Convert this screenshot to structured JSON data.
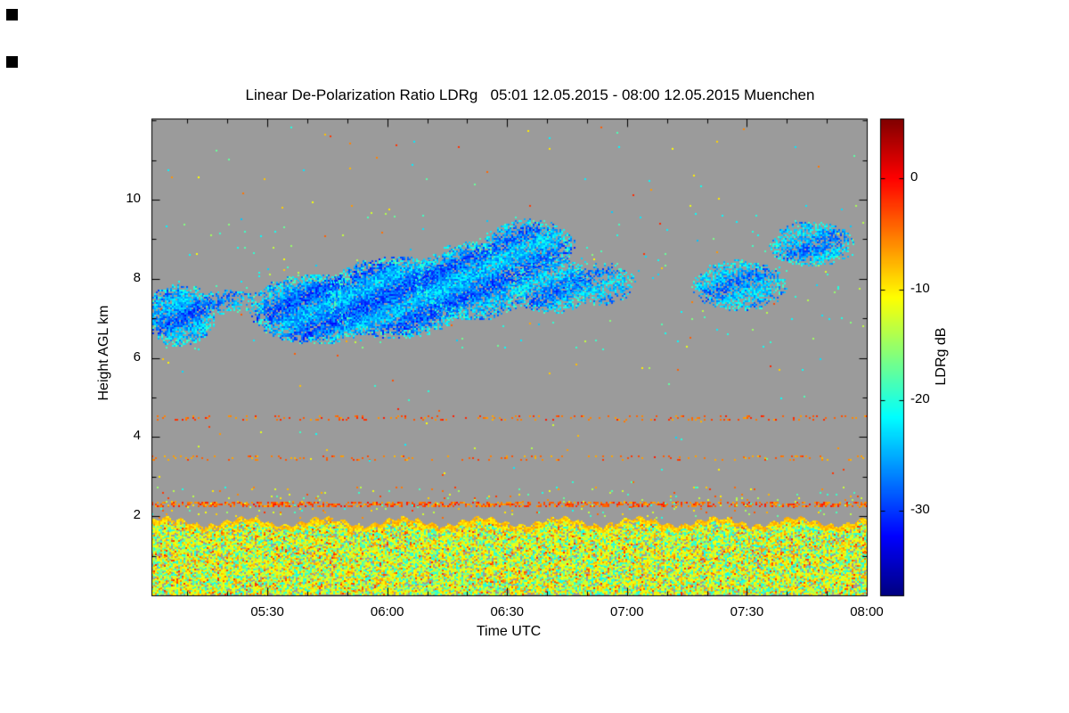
{
  "chart_data": {
    "type": "heatmap",
    "title": "Linear De-Polarization Ratio LDRg   05:01 12.05.2015 - 08:00 12.05.2015 Muenchen",
    "quantity": "Linear De-Polarization Ratio LDRg",
    "time_start": "05:01 12.05.2015",
    "time_end": "08:00 12.05.2015",
    "station": "Muenchen",
    "xlabel": "Time UTC",
    "ylabel": "Height AGL km",
    "colorbar_label": "LDRg dB",
    "x_ticks": [
      "05:30",
      "06:00",
      "06:30",
      "07:00",
      "07:30",
      "08:00"
    ],
    "x_tick_minutes": [
      30,
      60,
      90,
      120,
      150,
      180
    ],
    "x_minor_step_minutes": 10,
    "x_range_minutes": [
      1,
      180
    ],
    "y_ticks": [
      2,
      4,
      6,
      8,
      10
    ],
    "y_minor_step_km": 1,
    "y_range_km": [
      0,
      12.05
    ],
    "colorbar_ticks": [
      0,
      -10,
      -20,
      -30
    ],
    "colorbar_range_db": [
      -37.6,
      5.4
    ],
    "grid": false,
    "legend": null,
    "plot_background_color": "#9b9b9b",
    "page_background_color": "#ffffff",
    "axis_color": "#000000",
    "colormap_stops": [
      {
        "t": 0.0,
        "c": "#000080"
      },
      {
        "t": 0.125,
        "c": "#0000ff"
      },
      {
        "t": 0.375,
        "c": "#00ffff"
      },
      {
        "t": 0.625,
        "c": "#ffff00"
      },
      {
        "t": 0.875,
        "c": "#ff0000"
      },
      {
        "t": 1.0,
        "c": "#800000"
      }
    ],
    "regions": [
      {
        "kind": "noise_layer",
        "name": "boundary-layer",
        "t0": 1,
        "t1": 180,
        "h0": 0.03,
        "h_top": 1.86,
        "wave_amp": 0.1,
        "wave_freq": 0.32,
        "density": 0.9,
        "palette": [
          {
            "v": -11,
            "j": 1.8,
            "w": 0.36
          },
          {
            "v": -14,
            "j": 1.6,
            "w": 0.18
          },
          {
            "v": -19,
            "j": 2.2,
            "w": 0.27
          },
          {
            "v": -7.5,
            "j": 1.6,
            "w": 0.13
          },
          {
            "v": -3.5,
            "j": 2.0,
            "w": 0.06
          }
        ],
        "cap_thickness": 0.1,
        "cap_v": -8.5,
        "cap_j": 2.0,
        "cap_density": 0.92
      },
      {
        "kind": "speckle_line",
        "name": "artifact-line-2300m",
        "h": 2.3,
        "thickness": 0.11,
        "t0": 1,
        "t1": 180,
        "density": 0.5,
        "v": -4,
        "j": 3.5
      },
      {
        "kind": "sparse_dots",
        "name": "scatter-above-boundary-layer",
        "t0": 1,
        "t1": 180,
        "h0": 1.95,
        "h1": 2.75,
        "density": 0.03,
        "palette": [
          {
            "v": -6,
            "j": 4,
            "w": 0.55
          },
          {
            "v": -13,
            "j": 2,
            "w": 0.25
          },
          {
            "v": -19,
            "j": 2,
            "w": 0.2
          }
        ]
      },
      {
        "kind": "speckle_line",
        "name": "artifact-line-3500m",
        "h": 3.5,
        "thickness": 0.09,
        "t0": 1,
        "t1": 180,
        "density": 0.11,
        "v": -5,
        "j": 3
      },
      {
        "kind": "speckle_line",
        "name": "artifact-line-4500m",
        "h": 4.5,
        "thickness": 0.09,
        "t0": 1,
        "t1": 180,
        "density": 0.15,
        "v": -4,
        "j": 3
      },
      {
        "kind": "sparse_dots",
        "name": "random-speckles",
        "t0": 1,
        "t1": 180,
        "h0": 2.85,
        "h1": 11.9,
        "density": 0.0022,
        "palette": [
          {
            "v": -5,
            "j": 4,
            "w": 0.45
          },
          {
            "v": -20,
            "j": 3,
            "w": 0.35
          },
          {
            "v": -12,
            "j": 2.5,
            "w": 0.2
          }
        ]
      },
      {
        "kind": "sparse_dots",
        "name": "cloud-edge-speckles",
        "t0": 2,
        "t1": 180,
        "h0": 6.2,
        "h1": 9.7,
        "density": 0.006,
        "palette": [
          {
            "v": -21,
            "j": 3,
            "w": 0.8
          },
          {
            "v": -15,
            "j": 2,
            "w": 0.2
          }
        ]
      },
      {
        "kind": "blob",
        "name": "ice-cloud-segment-1",
        "tc": 8,
        "hc": 7.1,
        "rt": 9,
        "rh": 0.8,
        "density": 0.93,
        "v": -26,
        "j": 3.5
      },
      {
        "kind": "blob",
        "name": "ice-cloud-segment-2",
        "tc": 20,
        "hc": 7.45,
        "rt": 7,
        "rh": 0.33,
        "density": 0.55,
        "v": -25,
        "j": 3
      },
      {
        "kind": "blob",
        "name": "ice-cloud-segment-3",
        "tc": 42,
        "hc": 7.25,
        "rt": 17,
        "rh": 0.9,
        "density": 0.96,
        "v": -26.5,
        "j": 3.5
      },
      {
        "kind": "blob",
        "name": "ice-cloud-segment-4",
        "tc": 62,
        "hc": 7.55,
        "rt": 18,
        "rh": 1.05,
        "density": 0.96,
        "v": -26.5,
        "j": 3.5
      },
      {
        "kind": "blob",
        "name": "ice-cloud-segment-5",
        "tc": 81,
        "hc": 7.95,
        "rt": 15,
        "rh": 1.0,
        "density": 0.93,
        "v": -26,
        "j": 3.5
      },
      {
        "kind": "blob",
        "name": "ice-cloud-segment-6",
        "tc": 95,
        "hc": 8.85,
        "rt": 12,
        "rh": 0.68,
        "density": 0.85,
        "v": -25.5,
        "j": 3.5
      },
      {
        "kind": "blob",
        "name": "ice-cloud-segment-7",
        "tc": 101,
        "hc": 7.85,
        "rt": 10,
        "rh": 0.72,
        "density": 0.8,
        "v": -25.5,
        "j": 3.5
      },
      {
        "kind": "blob",
        "name": "ice-cloud-segment-8",
        "tc": 113,
        "hc": 7.9,
        "rt": 9,
        "rh": 0.55,
        "density": 0.6,
        "v": -25,
        "j": 3.5
      },
      {
        "kind": "blob",
        "name": "ice-cloud-segment-9",
        "tc": 148,
        "hc": 7.85,
        "rt": 12,
        "rh": 0.65,
        "density": 0.78,
        "v": -25,
        "j": 3.5
      },
      {
        "kind": "blob",
        "name": "ice-cloud-segment-10",
        "tc": 166,
        "hc": 8.9,
        "rt": 11,
        "rh": 0.58,
        "density": 0.72,
        "v": -25,
        "j": 3.5
      }
    ]
  }
}
